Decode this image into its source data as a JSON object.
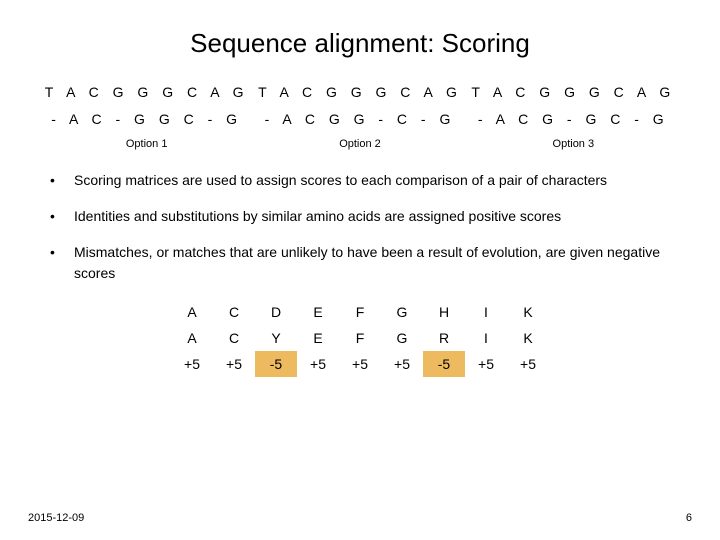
{
  "title": "Sequence alignment: Scoring",
  "options": [
    {
      "seq1": "T A C G G G C A G",
      "seq2": "- A C - G G C - G",
      "label": "Option 1"
    },
    {
      "seq1": "T A C G G G C A G",
      "seq2": "- A C G G - C - G",
      "label": "Option 2"
    },
    {
      "seq1": "T A C G G G C A G",
      "seq2": "- A C G - G C - G",
      "label": "Option 3"
    }
  ],
  "bullets": [
    "Scoring matrices are used to assign scores to each comparison of a pair of characters",
    "Identities and substitutions by similar amino acids are assigned positive scores",
    "Mismatches, or matches that are unlikely to have been a result of evolution, are given negative scores"
  ],
  "score_table": {
    "rows": [
      [
        "A",
        "C",
        "D",
        "E",
        "F",
        "G",
        "H",
        "I",
        "K"
      ],
      [
        "A",
        "C",
        "Y",
        "E",
        "F",
        "G",
        "R",
        "I",
        "K"
      ],
      [
        "+5",
        "+5",
        "-5",
        "+5",
        "+5",
        "+5",
        "-5",
        "+5",
        "+5"
      ]
    ],
    "neg_cols": [
      2,
      6
    ]
  },
  "footer": {
    "date": "2015-12-09",
    "page": "6"
  },
  "colors": {
    "neg_bg": "#edba60",
    "text": "#000000",
    "bg": "#ffffff"
  }
}
